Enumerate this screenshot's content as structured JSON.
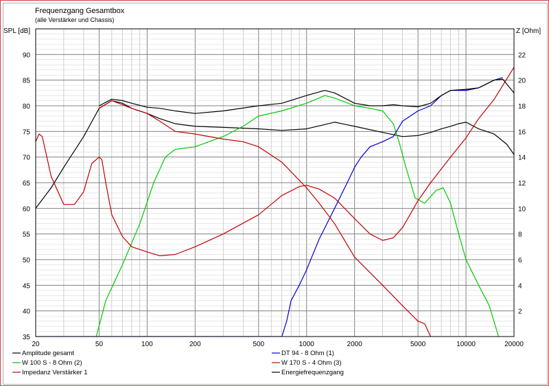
{
  "chart_data": {
    "type": "line",
    "title": "Frequenzgang Gesamtbox",
    "subtitle": "(alle Verstärker und Chassis)",
    "ylabel_left": "SPL [dB]",
    "ylabel_right": "Z [Ohm]",
    "x_scale": "log",
    "xlim": [
      20,
      20000
    ],
    "ylim_left": [
      35,
      95
    ],
    "ylim_right": [
      0,
      24
    ],
    "x_ticks": [
      "20",
      "50",
      "100",
      "200",
      "500",
      "1000",
      "2000",
      "5000",
      "10000",
      "20000"
    ],
    "y_ticks_left": [
      "35",
      "40",
      "45",
      "50",
      "55",
      "60",
      "65",
      "70",
      "75",
      "80",
      "85",
      "90"
    ],
    "y_ticks_right": [
      "2",
      "4",
      "6",
      "8",
      "10",
      "12",
      "14",
      "16",
      "18",
      "20",
      "22"
    ],
    "grid": true,
    "legend_position": "bottom",
    "series": [
      {
        "name": "Amplitude gesamt",
        "axis": "left",
        "color": "#000000",
        "x": [
          20,
          25,
          30,
          40,
          50,
          60,
          70,
          80,
          100,
          120,
          150,
          200,
          300,
          500,
          700,
          1000,
          1500,
          2000,
          3000,
          4000,
          5000,
          6000,
          7000,
          8000,
          9000,
          10000,
          12000,
          15000,
          18000,
          20000
        ],
        "y": [
          60,
          64,
          68,
          74,
          79.5,
          81,
          80.5,
          79.5,
          78.5,
          77.5,
          76.5,
          76,
          75.8,
          75.5,
          75.2,
          75.5,
          76.8,
          76,
          74.8,
          74,
          74.2,
          74.8,
          75.5,
          76,
          76.5,
          76.8,
          75.5,
          74.5,
          72.5,
          70.5
        ]
      },
      {
        "name": "W 100 S - 8 Ohm (2)",
        "axis": "left",
        "color": "#00c800",
        "x": [
          48,
          55,
          70,
          90,
          110,
          130,
          150,
          200,
          300,
          400,
          500,
          700,
          1000,
          1300,
          1500,
          2000,
          2500,
          3000,
          3500,
          3800,
          4200,
          4800,
          5500,
          6500,
          7200,
          8000,
          9000,
          10000,
          12000,
          14000,
          16000
        ],
        "y": [
          35,
          42,
          49,
          57,
          65,
          70,
          71.5,
          72,
          74,
          76,
          78,
          79,
          80.5,
          82,
          81.5,
          80,
          79.5,
          79,
          76.5,
          73,
          68,
          62,
          61,
          63.5,
          64,
          61,
          55,
          50,
          45,
          41,
          35
        ]
      },
      {
        "name": "Impedanz Verstärker 1",
        "axis": "right",
        "color": "#c00000",
        "x": [
          20,
          21,
          22,
          25,
          30,
          35,
          40,
          45,
          50,
          52,
          55,
          60,
          70,
          80,
          100,
          120,
          150,
          200,
          300,
          500,
          700,
          900,
          1000,
          1200,
          1500,
          2000,
          2500,
          3000,
          3500,
          4000,
          4500,
          5000,
          6000,
          8000,
          10000,
          12000,
          15000,
          20000
        ],
        "y": [
          15.2,
          15.8,
          15.6,
          12.5,
          10.3,
          10.3,
          11.3,
          13.5,
          14.0,
          13.8,
          12.0,
          9.5,
          7.8,
          7.0,
          6.6,
          6.3,
          6.4,
          7.0,
          8.0,
          9.5,
          11.0,
          11.7,
          11.8,
          11.5,
          10.8,
          9.2,
          8.0,
          7.5,
          7.7,
          8.5,
          9.6,
          10.6,
          12.0,
          14.0,
          15.5,
          17.0,
          18.5,
          21.0
        ]
      },
      {
        "name": "DT 94 - 8 Ohm (1)",
        "axis": "left",
        "color": "#0000c8",
        "x": [
          20,
          700,
          750,
          800,
          900,
          1000,
          1200,
          1500,
          1800,
          2000,
          2200,
          2500,
          3000,
          3500,
          4000,
          5000,
          6000,
          7000,
          8000,
          10000,
          12000,
          15000,
          17000
        ],
        "y": [
          35,
          35,
          38,
          42,
          45,
          48,
          54,
          60,
          65,
          68,
          70,
          72,
          73,
          74,
          77,
          79,
          80,
          82,
          83,
          83,
          83.5,
          85,
          85.5
        ]
      },
      {
        "name": "W 170 S - 4 Ohm (3)",
        "axis": "left",
        "color": "#c00000",
        "x": [
          50,
          60,
          80,
          100,
          120,
          150,
          200,
          300,
          400,
          500,
          700,
          1000,
          1200,
          1500,
          2000,
          3000,
          4000,
          5000,
          5500,
          6000
        ],
        "y": [
          79.5,
          81,
          79.5,
          78.5,
          77,
          75,
          74.5,
          73.5,
          73,
          72,
          69,
          64,
          61,
          57,
          50.5,
          45,
          41,
          38,
          37.5,
          35
        ]
      },
      {
        "name": "Energiefrequenzgang",
        "axis": "left",
        "color": "#000000",
        "x": [
          50,
          60,
          70,
          80,
          100,
          120,
          150,
          200,
          300,
          500,
          700,
          1000,
          1300,
          1500,
          2000,
          2500,
          3000,
          3500,
          4000,
          5000,
          6000,
          7000,
          8000,
          10000,
          12000,
          15000,
          17000,
          20000
        ],
        "y": [
          80,
          81.3,
          81,
          80.5,
          79.7,
          79.5,
          79,
          78.5,
          79,
          80,
          80.5,
          82,
          83,
          82.5,
          80.5,
          80,
          80,
          80.2,
          80,
          79.8,
          80.5,
          82,
          83,
          83.2,
          83.5,
          85,
          85.2,
          82.5
        ]
      }
    ]
  }
}
